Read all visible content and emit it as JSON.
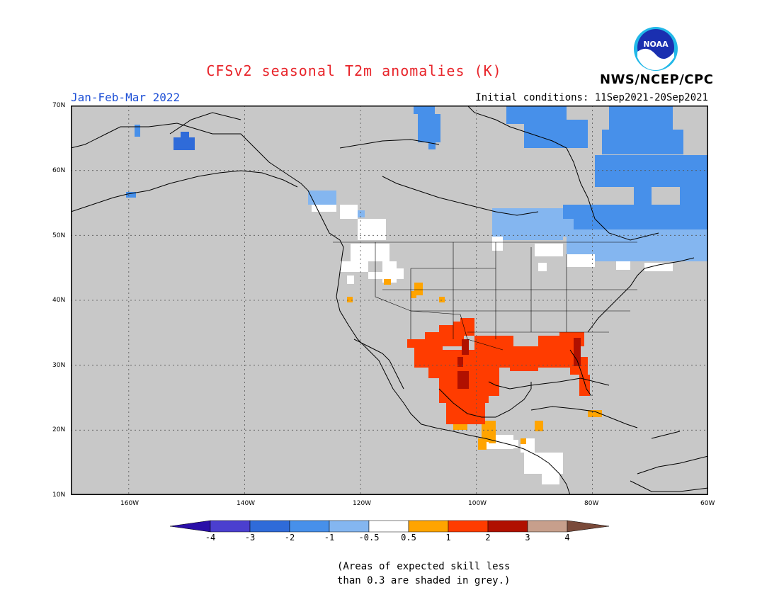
{
  "title": "CFSv2 seasonal T2m anomalies (K)",
  "agency": "NWS/NCEP/CPC",
  "period": "Jan-Feb-Mar 2022",
  "initial_conditions": "Initial conditions: 11Sep2021-20Sep2021",
  "logo": {
    "text": "NOAA",
    "icon": "noaa-logo-icon"
  },
  "map": {
    "background_color": "#c8c8c8",
    "lat_labels": [
      "70N",
      "60N",
      "50N",
      "40N",
      "30N",
      "20N",
      "10N"
    ],
    "lon_labels": [
      "160W",
      "140W",
      "120W",
      "100W",
      "80W",
      "60W"
    ],
    "lat_range": [
      10,
      70
    ],
    "lon_range": [
      -170,
      -60
    ]
  },
  "colorbar": {
    "labels": [
      "-4",
      "-3",
      "-2",
      "-1",
      "-0.5",
      "0.5",
      "1",
      "2",
      "3",
      "4"
    ],
    "colors": [
      "#2a0fa8",
      "#4b3fcf",
      "#2f6bd9",
      "#4790ea",
      "#84b6f0",
      "#ffffff",
      "#ffa400",
      "#ff3c00",
      "#b01000",
      "#c79f8c",
      "#7a4a3a"
    ]
  },
  "note": {
    "line1": "(Areas of expected skill less",
    "line2": "than 0.3 are shaded in grey.)"
  }
}
